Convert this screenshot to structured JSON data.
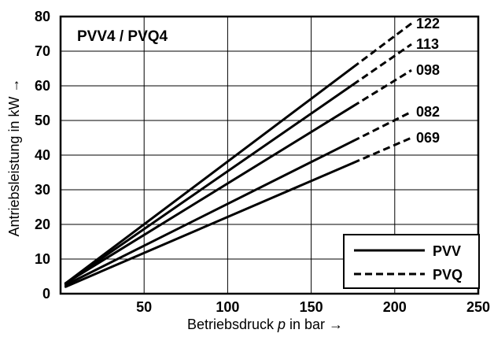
{
  "chart_data": {
    "type": "line",
    "title": "PVV4 / PVQ4",
    "xlabel_pre": "Betriebsdruck ",
    "xlabel_var": "p",
    "xlabel_post": " in bar →",
    "ylabel": "Antriebsleistung in kW →",
    "xlim": [
      0,
      250
    ],
    "ylim": [
      0,
      80
    ],
    "x_ticks": [
      50,
      100,
      150,
      200,
      250
    ],
    "y_ticks": [
      0,
      10,
      20,
      30,
      40,
      50,
      60,
      70,
      80
    ],
    "grid": true,
    "legend_position": "bottom-right",
    "legend": [
      {
        "label": "PVV",
        "style": "solid"
      },
      {
        "label": "PVQ",
        "style": "dashed"
      }
    ],
    "solid_until_x": 175,
    "series": [
      {
        "name": "122",
        "x": [
          3,
          210
        ],
        "y": [
          3,
          78
        ]
      },
      {
        "name": "113",
        "x": [
          3,
          210
        ],
        "y": [
          3,
          72
        ]
      },
      {
        "name": "098",
        "x": [
          3,
          210
        ],
        "y": [
          3,
          64.5
        ]
      },
      {
        "name": "082",
        "x": [
          3,
          210
        ],
        "y": [
          2.5,
          52.5
        ]
      },
      {
        "name": "069",
        "x": [
          3,
          210
        ],
        "y": [
          2,
          45
        ]
      }
    ]
  }
}
